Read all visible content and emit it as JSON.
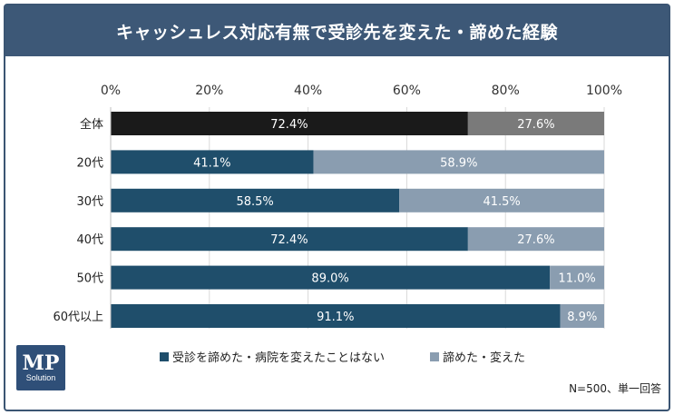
{
  "title": "キャッシュレス対応有無で受診先を変えた・諦めた経験",
  "logo": {
    "main": "MP",
    "sub": "Solution"
  },
  "note": "N=500、単一回答",
  "colors": {
    "title_bg": "#3d5877",
    "series": [
      "#1f4e6b",
      "#8a9db0"
    ],
    "highlight": [
      "#1a1a1a",
      "#7a7a7a"
    ]
  },
  "chart_data": {
    "type": "bar",
    "orientation": "horizontal",
    "stacked": true,
    "percent": true,
    "title": "キャッシュレス対応有無で受診先を変えた・諦めた経験",
    "xlim": [
      0,
      100
    ],
    "x_ticks": [
      "0%",
      "20%",
      "40%",
      "60%",
      "80%",
      "100%"
    ],
    "categories": [
      "全体",
      "20代",
      "30代",
      "40代",
      "50代",
      "60代以上"
    ],
    "series": [
      {
        "name": "受診を諦めた・病院を変えたことはない",
        "values": [
          72.4,
          41.1,
          58.5,
          72.4,
          89.0,
          91.1
        ]
      },
      {
        "name": "諦めた・変えた",
        "values": [
          27.6,
          58.9,
          41.5,
          27.6,
          11.0,
          8.9
        ]
      }
    ],
    "data_labels": [
      [
        "72.4%",
        "27.6%"
      ],
      [
        "41.1%",
        "58.9%"
      ],
      [
        "58.5%",
        "41.5%"
      ],
      [
        "72.4%",
        "27.6%"
      ],
      [
        "89.0%",
        "11.0%"
      ],
      [
        "91.1%",
        "8.9%"
      ]
    ],
    "legend_position": "bottom",
    "grid": true
  }
}
